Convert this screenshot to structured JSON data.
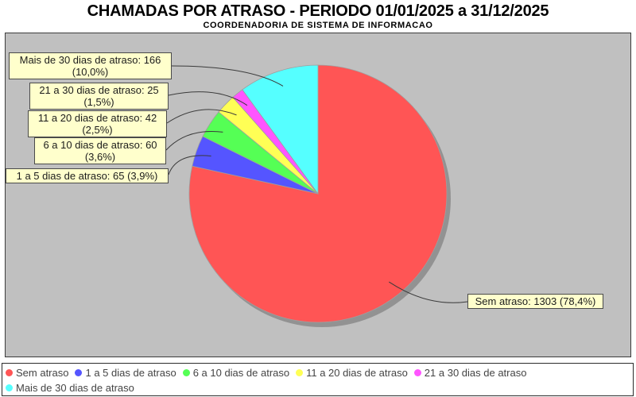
{
  "chart_data": {
    "type": "pie",
    "title": "CHAMADAS POR ATRASO - PERIODO 01/01/2025 a 31/12/2025",
    "subtitle": "COORDENADORIA DE SISTEMA DE INFORMACAO",
    "total": 1661,
    "start_angle_deg": 90,
    "direction": "clockwise",
    "legend_position": "bottom",
    "plot_background": "#C0C0C0",
    "label_background": "#FFFFCC",
    "shadow_color": "rgba(0,0,0,0.24)",
    "outline_color": "#9e9e9e",
    "leader_line_color": "#3a3a3a",
    "series": [
      {
        "label": "Sem atraso",
        "value": 1303,
        "pct_label": "78,4%",
        "color": "#FF5555"
      },
      {
        "label": "1 a 5 dias de atraso",
        "value": 65,
        "pct_label": "3,9%",
        "color": "#5555FF"
      },
      {
        "label": "6 a 10 dias de atraso",
        "value": 60,
        "pct_label": "3,6%",
        "color": "#55FF55"
      },
      {
        "label": "11 a 20 dias de atraso",
        "value": 42,
        "pct_label": "2,5%",
        "color": "#FFFF55"
      },
      {
        "label": "21 a 30 dias de atraso",
        "value": 25,
        "pct_label": "1,5%",
        "color": "#FF55FF"
      },
      {
        "label": "Mais de 30 dias de atraso",
        "value": 166,
        "pct_label": "10,0%",
        "color": "#55FFFF"
      }
    ],
    "callouts": [
      {
        "slice": "Mais de 30 dias de atraso",
        "line1": "Mais de 30 dias de atraso: 166",
        "line2": "(10,0%)"
      },
      {
        "slice": "21 a 30 dias de atraso",
        "line1": "21 a 30 dias de atraso: 25",
        "line2": "(1,5%)"
      },
      {
        "slice": "11 a 20 dias de atraso",
        "line1": "11 a 20 dias de atraso: 42",
        "line2": "(2,5%)"
      },
      {
        "slice": "6 a 10 dias de atraso",
        "line1": "6 a 10 dias de atraso: 60",
        "line2": "(3,6%)"
      },
      {
        "slice": "1 a 5 dias de atraso",
        "line1": "1 a 5 dias de atraso: 65 (3,9%)"
      },
      {
        "slice": "Sem atraso",
        "line1": "Sem atraso: 1303 (78,4%)"
      }
    ]
  }
}
